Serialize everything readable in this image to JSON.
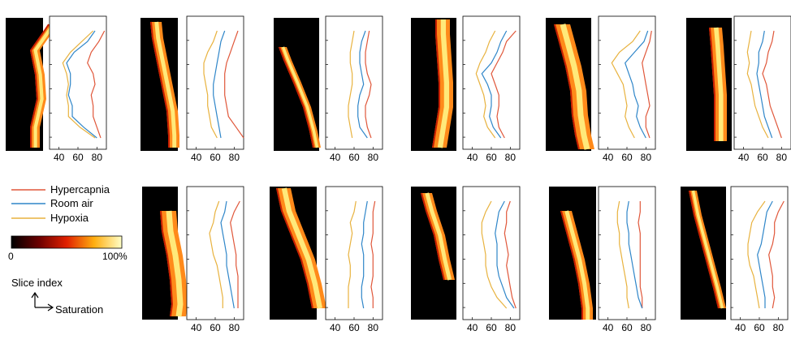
{
  "legend": {
    "entries": [
      {
        "label": "Hypercapnia",
        "color": "#e0573a"
      },
      {
        "label": "Room air",
        "color": "#2f86c9"
      },
      {
        "label": "Hypoxia",
        "color": "#e8b23e"
      }
    ],
    "colorbar": {
      "min_label": "0",
      "max_label": "100%"
    },
    "axes_hint": {
      "y_label": "Slice index",
      "x_label": "Saturation"
    }
  },
  "chart_data": [
    {
      "type": "line",
      "panel": "row1-col1",
      "x_ticks": [
        40,
        60,
        80
      ],
      "xlim": [
        30,
        90
      ],
      "series": [
        {
          "name": "Hypercapnia",
          "color": "#e0573a",
          "x": [
            88,
            82,
            74,
            70,
            76,
            78,
            74,
            76,
            76,
            80,
            84
          ]
        },
        {
          "name": "Room air",
          "color": "#2f86c9",
          "x": [
            78,
            70,
            56,
            48,
            52,
            52,
            50,
            54,
            54,
            66,
            80
          ]
        },
        {
          "name": "Hypoxia",
          "color": "#e8b23e",
          "x": [
            76,
            64,
            52,
            44,
            48,
            50,
            48,
            50,
            50,
            62,
            78
          ]
        }
      ]
    },
    {
      "type": "line",
      "panel": "row1-col2",
      "x_ticks": [
        40,
        60,
        80
      ],
      "xlim": [
        30,
        90
      ],
      "series": [
        {
          "name": "Hypercapnia",
          "color": "#e0573a",
          "x": [
            84,
            80,
            76,
            72,
            70,
            70,
            70,
            72,
            74,
            82,
            90
          ]
        },
        {
          "name": "Room air",
          "color": "#2f86c9",
          "x": [
            70,
            66,
            64,
            62,
            60,
            58,
            58,
            60,
            62,
            64,
            66
          ]
        },
        {
          "name": "Hypoxia",
          "color": "#e8b23e",
          "x": [
            62,
            58,
            52,
            48,
            48,
            50,
            52,
            52,
            54,
            56,
            62
          ]
        }
      ]
    },
    {
      "type": "line",
      "panel": "row1-col3",
      "x_ticks": [
        40,
        60,
        80
      ],
      "xlim": [
        30,
        90
      ],
      "series": [
        {
          "name": "Hypercapnia",
          "color": "#e0573a",
          "x": [
            76,
            74,
            72,
            72,
            74,
            78,
            76,
            72,
            72,
            74,
            78
          ]
        },
        {
          "name": "Room air",
          "color": "#2f86c9",
          "x": [
            72,
            68,
            66,
            66,
            68,
            70,
            66,
            64,
            64,
            66,
            74
          ]
        },
        {
          "name": "Hypoxia",
          "color": "#e8b23e",
          "x": [
            60,
            58,
            56,
            56,
            58,
            58,
            56,
            54,
            54,
            56,
            58
          ]
        }
      ]
    },
    {
      "type": "line",
      "panel": "row1-col4",
      "x_ticks": [
        40,
        60,
        80
      ],
      "xlim": [
        30,
        90
      ],
      "series": [
        {
          "name": "Hypercapnia",
          "color": "#e0573a",
          "x": [
            86,
            76,
            72,
            66,
            60,
            64,
            68,
            68,
            66,
            68,
            74
          ]
        },
        {
          "name": "Room air",
          "color": "#2f86c9",
          "x": [
            76,
            70,
            66,
            60,
            50,
            56,
            60,
            60,
            58,
            62,
            70
          ]
        },
        {
          "name": "Hypoxia",
          "color": "#e8b23e",
          "x": [
            64,
            58,
            54,
            48,
            44,
            48,
            52,
            54,
            52,
            56,
            64
          ]
        }
      ]
    },
    {
      "type": "line",
      "panel": "row1-col5",
      "x_ticks": [
        40,
        60,
        80
      ],
      "xlim": [
        30,
        90
      ],
      "series": [
        {
          "name": "Hypercapnia",
          "color": "#e0573a",
          "x": [
            86,
            84,
            80,
            76,
            78,
            80,
            82,
            84,
            80,
            80,
            84
          ]
        },
        {
          "name": "Room air",
          "color": "#2f86c9",
          "x": [
            82,
            78,
            68,
            58,
            62,
            66,
            68,
            72,
            70,
            74,
            80
          ]
        },
        {
          "name": "Hypoxia",
          "color": "#e8b23e",
          "x": [
            74,
            66,
            52,
            44,
            50,
            56,
            58,
            60,
            58,
            62,
            68
          ]
        }
      ]
    },
    {
      "type": "line",
      "panel": "row1-col6",
      "x_ticks": [
        40,
        60,
        80
      ],
      "xlim": [
        30,
        90
      ],
      "series": [
        {
          "name": "Hypercapnia",
          "color": "#e0573a",
          "x": [
            72,
            70,
            66,
            64,
            60,
            64,
            66,
            68,
            72,
            76,
            80
          ]
        },
        {
          "name": "Room air",
          "color": "#2f86c9",
          "x": [
            62,
            60,
            56,
            56,
            54,
            56,
            58,
            60,
            62,
            66,
            70
          ]
        },
        {
          "name": "Hypoxia",
          "color": "#e8b23e",
          "x": [
            48,
            46,
            44,
            46,
            44,
            48,
            50,
            52,
            56,
            60,
            66
          ]
        }
      ]
    },
    {
      "type": "line",
      "panel": "row2-col1",
      "x_ticks": [
        40,
        60,
        80
      ],
      "xlim": [
        30,
        90
      ],
      "series": [
        {
          "name": "Hypercapnia",
          "color": "#e0573a",
          "x": [
            86,
            80,
            76,
            78,
            80,
            82,
            82,
            84,
            84,
            84,
            84
          ]
        },
        {
          "name": "Room air",
          "color": "#2f86c9",
          "x": [
            72,
            70,
            66,
            68,
            70,
            72,
            72,
            74,
            76,
            78,
            80
          ]
        },
        {
          "name": "Hypoxia",
          "color": "#e8b23e",
          "x": [
            64,
            60,
            58,
            54,
            56,
            58,
            62,
            64,
            66,
            68,
            68
          ]
        }
      ]
    },
    {
      "type": "line",
      "panel": "row2-col2",
      "x_ticks": [
        40,
        60,
        80
      ],
      "xlim": [
        30,
        90
      ],
      "series": [
        {
          "name": "Hypercapnia",
          "color": "#e0573a",
          "x": [
            82,
            80,
            80,
            80,
            78,
            80,
            80,
            80,
            78,
            80,
            80
          ]
        },
        {
          "name": "Room air",
          "color": "#2f86c9",
          "x": [
            74,
            72,
            70,
            70,
            68,
            70,
            70,
            70,
            68,
            68,
            70
          ]
        },
        {
          "name": "Hypoxia",
          "color": "#e8b23e",
          "x": [
            62,
            60,
            56,
            58,
            56,
            54,
            56,
            56,
            54,
            54,
            54
          ]
        }
      ]
    },
    {
      "type": "line",
      "panel": "row2-col3",
      "x_ticks": [
        40,
        60,
        80
      ],
      "xlim": [
        30,
        90
      ],
      "series": [
        {
          "name": "Hypercapnia",
          "color": "#e0573a",
          "x": [
            80,
            76,
            76,
            74,
            76,
            78,
            76,
            78,
            80,
            82,
            86
          ]
        },
        {
          "name": "Room air",
          "color": "#2f86c9",
          "x": [
            74,
            68,
            66,
            64,
            66,
            66,
            66,
            68,
            72,
            76,
            84
          ]
        },
        {
          "name": "Hypoxia",
          "color": "#e8b23e",
          "x": [
            60,
            54,
            50,
            50,
            52,
            54,
            54,
            56,
            60,
            66,
            76
          ]
        }
      ]
    },
    {
      "type": "line",
      "panel": "row2-col4",
      "x_ticks": [
        40,
        60,
        80
      ],
      "xlim": [
        30,
        90
      ],
      "series": [
        {
          "name": "Hypercapnia",
          "color": "#e0573a",
          "x": [
            74,
            74,
            72,
            74,
            74,
            74,
            74,
            74,
            74,
            76,
            76
          ]
        },
        {
          "name": "Room air",
          "color": "#2f86c9",
          "x": [
            62,
            60,
            60,
            62,
            62,
            64,
            66,
            68,
            70,
            72,
            76
          ]
        },
        {
          "name": "Hypoxia",
          "color": "#e8b23e",
          "x": [
            52,
            50,
            50,
            52,
            52,
            54,
            56,
            58,
            60,
            60,
            62
          ]
        }
      ]
    },
    {
      "type": "line",
      "panel": "row2-col5",
      "x_ticks": [
        40,
        60,
        80
      ],
      "xlim": [
        30,
        90
      ],
      "series": [
        {
          "name": "Hypercapnia",
          "color": "#e0573a",
          "x": [
            86,
            80,
            76,
            76,
            74,
            70,
            72,
            74,
            74,
            76,
            74
          ]
        },
        {
          "name": "Room air",
          "color": "#2f86c9",
          "x": [
            74,
            68,
            66,
            64,
            62,
            58,
            60,
            62,
            64,
            66,
            66
          ]
        },
        {
          "name": "Hypoxia",
          "color": "#e8b23e",
          "x": [
            66,
            58,
            52,
            50,
            48,
            48,
            50,
            54,
            56,
            58,
            60
          ]
        }
      ]
    }
  ]
}
